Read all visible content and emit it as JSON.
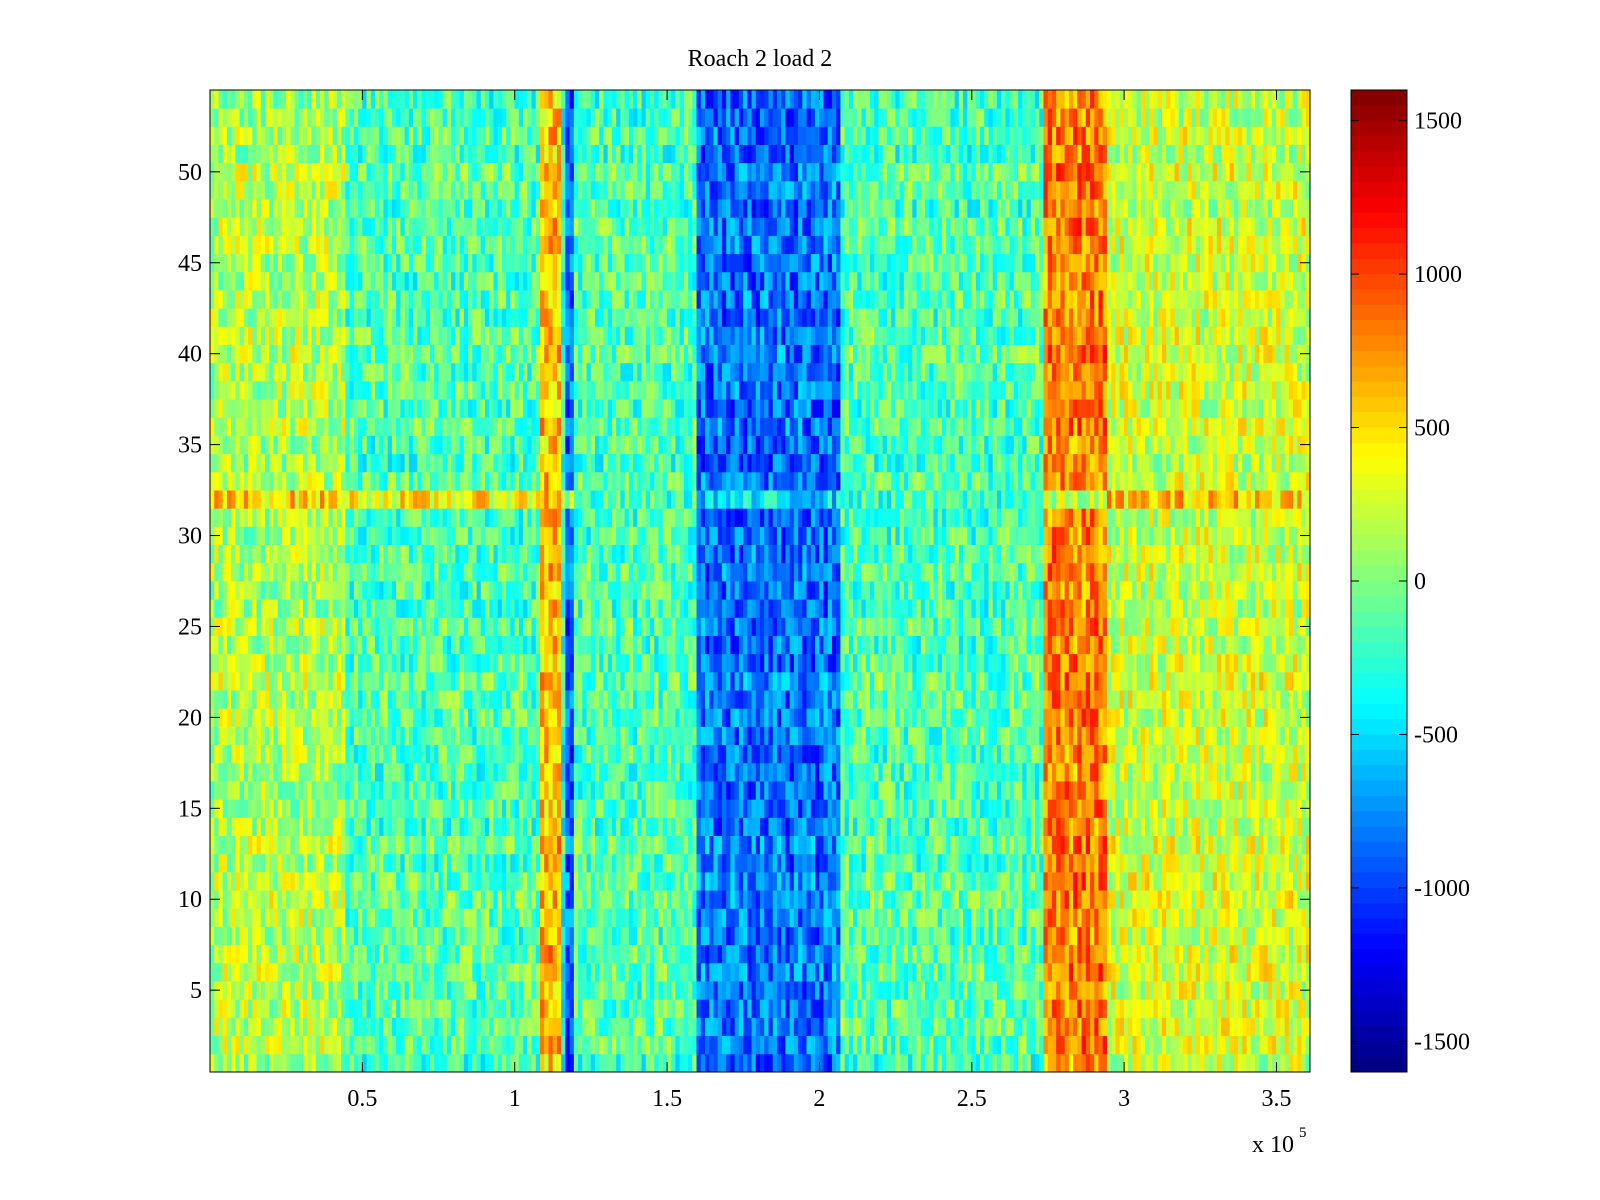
{
  "chart_data": {
    "type": "heatmap",
    "title": "Roach 2 load 2",
    "xlabel": "",
    "ylabel": "",
    "xlim": [
      0,
      361000
    ],
    "ylim": [
      0.5,
      54.5
    ],
    "x_ticks": [
      50000,
      100000,
      150000,
      200000,
      250000,
      300000,
      350000
    ],
    "x_tick_labels": [
      "0.5",
      "1",
      "1.5",
      "2",
      "2.5",
      "3",
      "3.5"
    ],
    "x_exponent_label": "x 10",
    "x_exponent_power": "5",
    "y_ticks": [
      5,
      10,
      15,
      20,
      25,
      30,
      35,
      40,
      45,
      50
    ],
    "y_tick_labels": [
      "5",
      "10",
      "15",
      "20",
      "25",
      "30",
      "35",
      "40",
      "45",
      "50"
    ],
    "rows": 54,
    "colormap": "jet",
    "clim": [
      -1600,
      1600
    ],
    "colorbar_ticks": [
      1500,
      1000,
      500,
      0,
      -500,
      -1000,
      -1500
    ],
    "colorbar_tick_labels": [
      "1500",
      "1000",
      "500",
      "0",
      "-500",
      "-1000",
      "-1500"
    ],
    "features": [
      {
        "description": "blue band",
        "x_range": [
          160000,
          207000
        ],
        "level": -850
      },
      {
        "description": "thin blue line",
        "x_range": [
          115000,
          120000
        ],
        "level": -900
      },
      {
        "description": "red band",
        "x_range": [
          273000,
          294000
        ],
        "level": 800
      },
      {
        "description": "warm band",
        "x_range": [
          0,
          45000
        ],
        "level": 150
      },
      {
        "description": "red stripe near 1.1e5",
        "x_range": [
          108000,
          116000
        ],
        "level": 600
      },
      {
        "description": "row 32 anomaly",
        "row": 32,
        "level": 700
      }
    ]
  }
}
